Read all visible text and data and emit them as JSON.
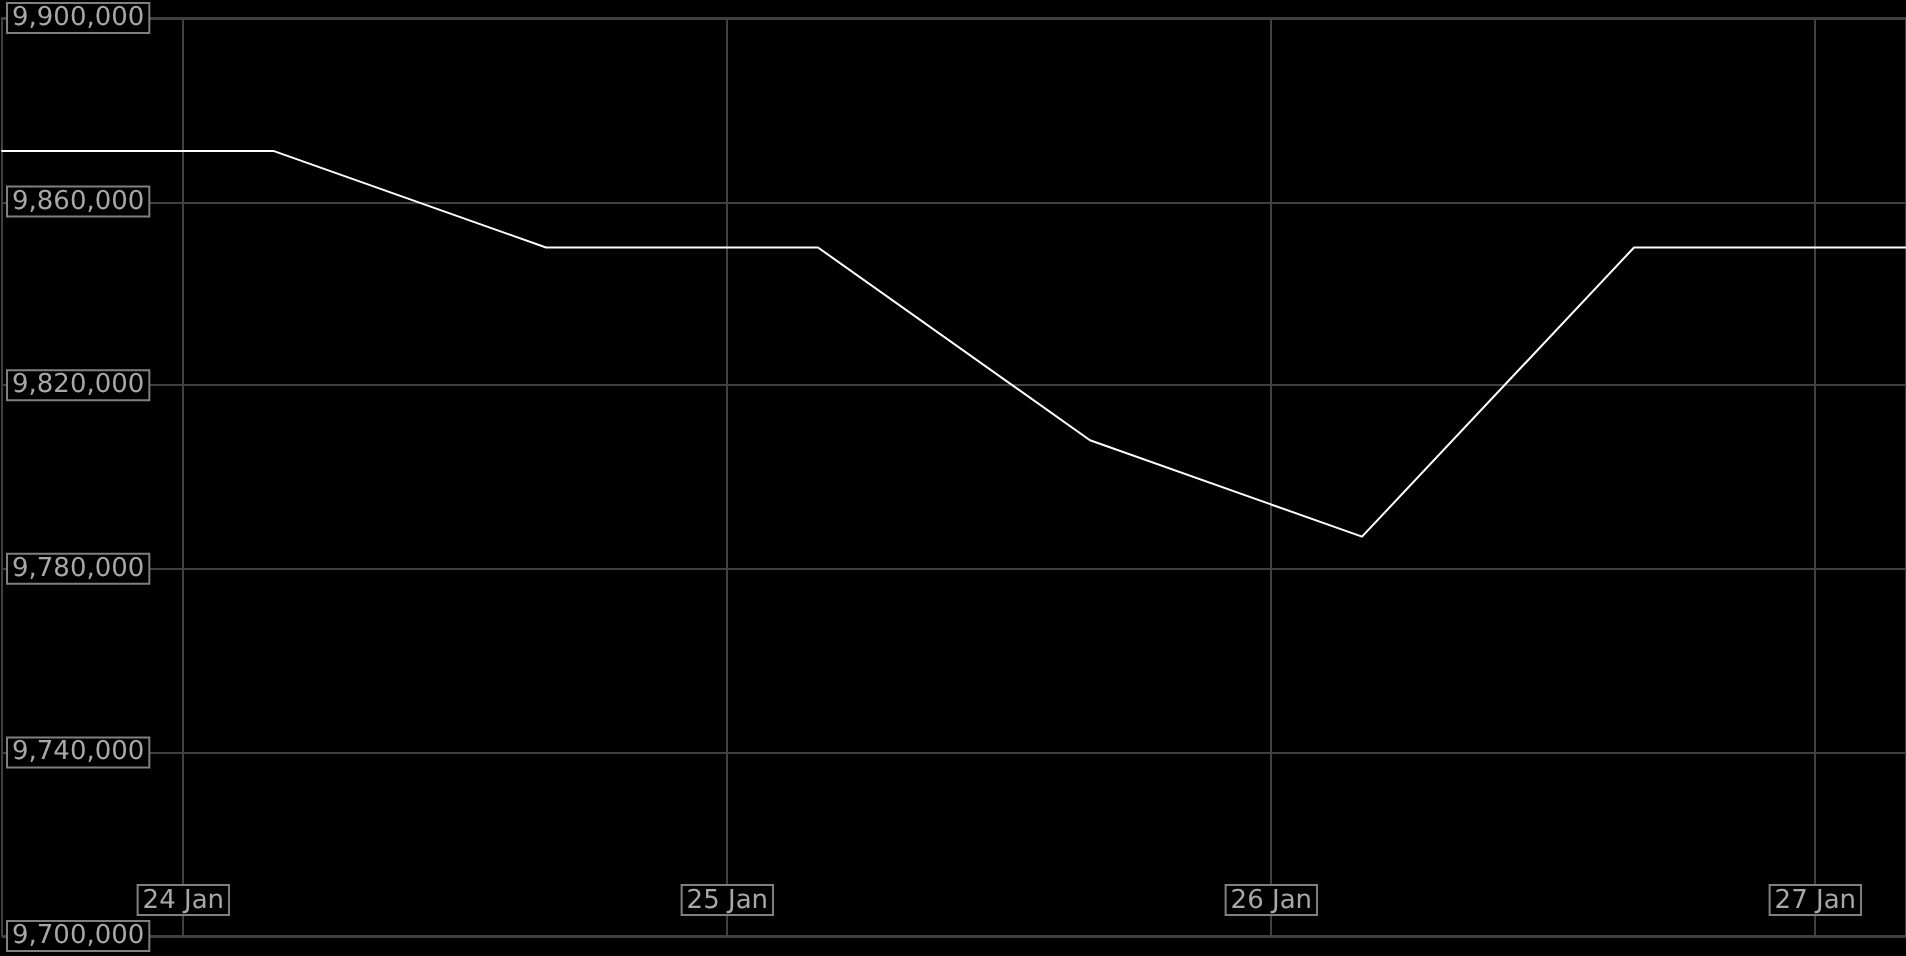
{
  "chart_data": {
    "type": "line",
    "x": [
      "--01-23T16:00",
      "--01-24T04:00",
      "--01-24T16:00",
      "--01-25T04:00",
      "--01-25T16:00",
      "--01-26T04:00",
      "--01-26T16:00",
      "--01-27T04:00"
    ],
    "series": [
      {
        "color": "#ffffff",
        "values": [
          9871000,
          9871000,
          9850000,
          9850000,
          9808000,
          9787000,
          9850000,
          9850000
        ]
      }
    ],
    "xlim": [
      "--01-23T16:00",
      "--01-27T04:00"
    ],
    "xticks": [
      {
        "value": "--01-24",
        "label": "24 Jan"
      },
      {
        "value": "--01-25",
        "label": "25 Jan"
      },
      {
        "value": "--01-26",
        "label": "26 Jan"
      },
      {
        "value": "--01-27",
        "label": "27 Jan"
      }
    ],
    "ylim": [
      9700000,
      9900000
    ],
    "yticks": [
      {
        "value": 9700000,
        "label": "9,700,000"
      },
      {
        "value": 9740000,
        "label": "9,740,000"
      },
      {
        "value": 9780000,
        "label": "9,780,000"
      },
      {
        "value": 9820000,
        "label": "9,820,000"
      },
      {
        "value": 9860000,
        "label": "9,860,000"
      },
      {
        "value": 9900000,
        "label": "9,900,000"
      }
    ],
    "grid": true,
    "marker": "none",
    "line_style": "solid"
  }
}
